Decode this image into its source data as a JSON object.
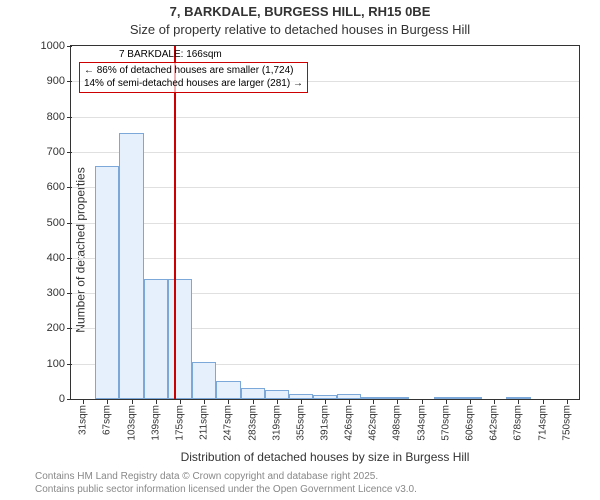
{
  "title_main": "7, BARKDALE, BURGESS HILL, RH15 0BE",
  "title_sub": "Size of property relative to detached houses in Burgess Hill",
  "y_axis_label": "Number of detached properties",
  "x_axis_label": "Distribution of detached houses by size in Burgess Hill",
  "chart": {
    "type": "bar",
    "xmin": 13,
    "xmax": 768,
    "ymin": 0,
    "ymax": 1000,
    "ytick_step": 100,
    "grid_color": "#e0e0e0",
    "plot_border_color": "#333333",
    "background_color": "#ffffff",
    "bar_fill": "#e6f0fc",
    "bar_border": "#7ba8d9",
    "bar_width_x": 36,
    "marker_color": "#cc0000",
    "xticks": [
      31,
      67,
      103,
      139,
      175,
      211,
      247,
      283,
      319,
      355,
      391,
      426,
      462,
      498,
      534,
      570,
      606,
      642,
      678,
      714,
      750
    ],
    "xtick_suffix": "sqm",
    "bars": [
      {
        "x_center": 67,
        "value": 660
      },
      {
        "x_center": 103,
        "value": 755
      },
      {
        "x_center": 139,
        "value": 340
      },
      {
        "x_center": 175,
        "value": 340
      },
      {
        "x_center": 211,
        "value": 105
      },
      {
        "x_center": 247,
        "value": 50
      },
      {
        "x_center": 283,
        "value": 30
      },
      {
        "x_center": 319,
        "value": 25
      },
      {
        "x_center": 355,
        "value": 15
      },
      {
        "x_center": 391,
        "value": 10
      },
      {
        "x_center": 426,
        "value": 15
      },
      {
        "x_center": 462,
        "value": 5
      },
      {
        "x_center": 498,
        "value": 5
      },
      {
        "x_center": 570,
        "value": 3
      },
      {
        "x_center": 606,
        "value": 3
      },
      {
        "x_center": 678,
        "value": 3
      }
    ],
    "marker": {
      "x": 166,
      "title": "7 BARKDALE: 166sqm",
      "callout_line1": "← 86% of detached houses are smaller (1,724)",
      "callout_line2": "14% of semi-detached houses are larger (281) →"
    }
  },
  "footer_line1": "Contains HM Land Registry data © Crown copyright and database right 2025.",
  "footer_line2": "Contains public sector information licensed under the Open Government Licence v3.0.",
  "fonts": {
    "title_size_pt": 13,
    "axis_label_size_pt": 12,
    "tick_size_pt": 11,
    "xtick_size_pt": 10,
    "callout_size_pt": 10,
    "footer_size_pt": 10
  },
  "colors": {
    "text": "#333333",
    "footer_text": "#888888"
  }
}
